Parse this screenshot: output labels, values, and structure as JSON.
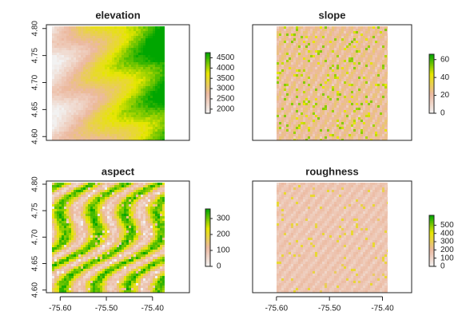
{
  "chart_data": [
    {
      "type": "raster",
      "title": "elevation",
      "xlim": [
        -75.63,
        -75.32
      ],
      "ylim": [
        4.593,
        4.807
      ],
      "yticks": [
        {
          "value": 4.6,
          "label": "4.60"
        },
        {
          "value": 4.65,
          "label": "4.65"
        },
        {
          "value": 4.7,
          "label": "4.70"
        },
        {
          "value": 4.75,
          "label": "4.75"
        },
        {
          "value": 4.8,
          "label": "4.80"
        }
      ],
      "zlim": [
        1800,
        4750
      ],
      "zticks": [
        2000,
        2500,
        3000,
        3500,
        4000,
        4500
      ],
      "colors": [
        "#f2f2f2",
        "#ecb9a0",
        "#e6e600",
        "#00a600"
      ]
    },
    {
      "type": "raster",
      "title": "slope",
      "xlim": [
        -75.645,
        -75.345
      ],
      "ylim": [
        4.593,
        4.807
      ],
      "zlim": [
        0,
        66
      ],
      "zticks": [
        0,
        20,
        40,
        60
      ],
      "colors": [
        "#f2f2f2",
        "#ecb9a0",
        "#e6e600",
        "#00a600"
      ]
    },
    {
      "type": "raster",
      "title": "aspect",
      "xlim": [
        -75.63,
        -75.32
      ],
      "ylim": [
        4.595,
        4.806
      ],
      "xticks": [
        {
          "value": -75.6,
          "label": "-75.60"
        },
        {
          "value": -75.5,
          "label": "-75.50"
        },
        {
          "value": -75.4,
          "label": "-75.40"
        }
      ],
      "yticks": [
        {
          "value": 4.6,
          "label": "4.60"
        },
        {
          "value": 4.65,
          "label": "4.65"
        },
        {
          "value": 4.7,
          "label": "4.70"
        },
        {
          "value": 4.75,
          "label": "4.75"
        },
        {
          "value": 4.8,
          "label": "4.80"
        }
      ],
      "zlim": [
        0,
        360
      ],
      "zticks": [
        0,
        100,
        200,
        300
      ],
      "colors": [
        "#f2f2f2",
        "#ecb9a0",
        "#e6e600",
        "#00a600"
      ]
    },
    {
      "type": "raster",
      "title": "roughness",
      "xlim": [
        -75.645,
        -75.345
      ],
      "ylim": [
        4.595,
        4.806
      ],
      "xticks": [
        {
          "value": -75.6,
          "label": "-75.60"
        },
        {
          "value": -75.5,
          "label": "-75.50"
        },
        {
          "value": -75.4,
          "label": "-75.40"
        }
      ],
      "zlim": [
        0,
        620
      ],
      "zticks": [
        0,
        100,
        200,
        300,
        400,
        500
      ],
      "colors": [
        "#f2f2f2",
        "#ecb9a0",
        "#e6e600",
        "#00a600"
      ]
    }
  ]
}
